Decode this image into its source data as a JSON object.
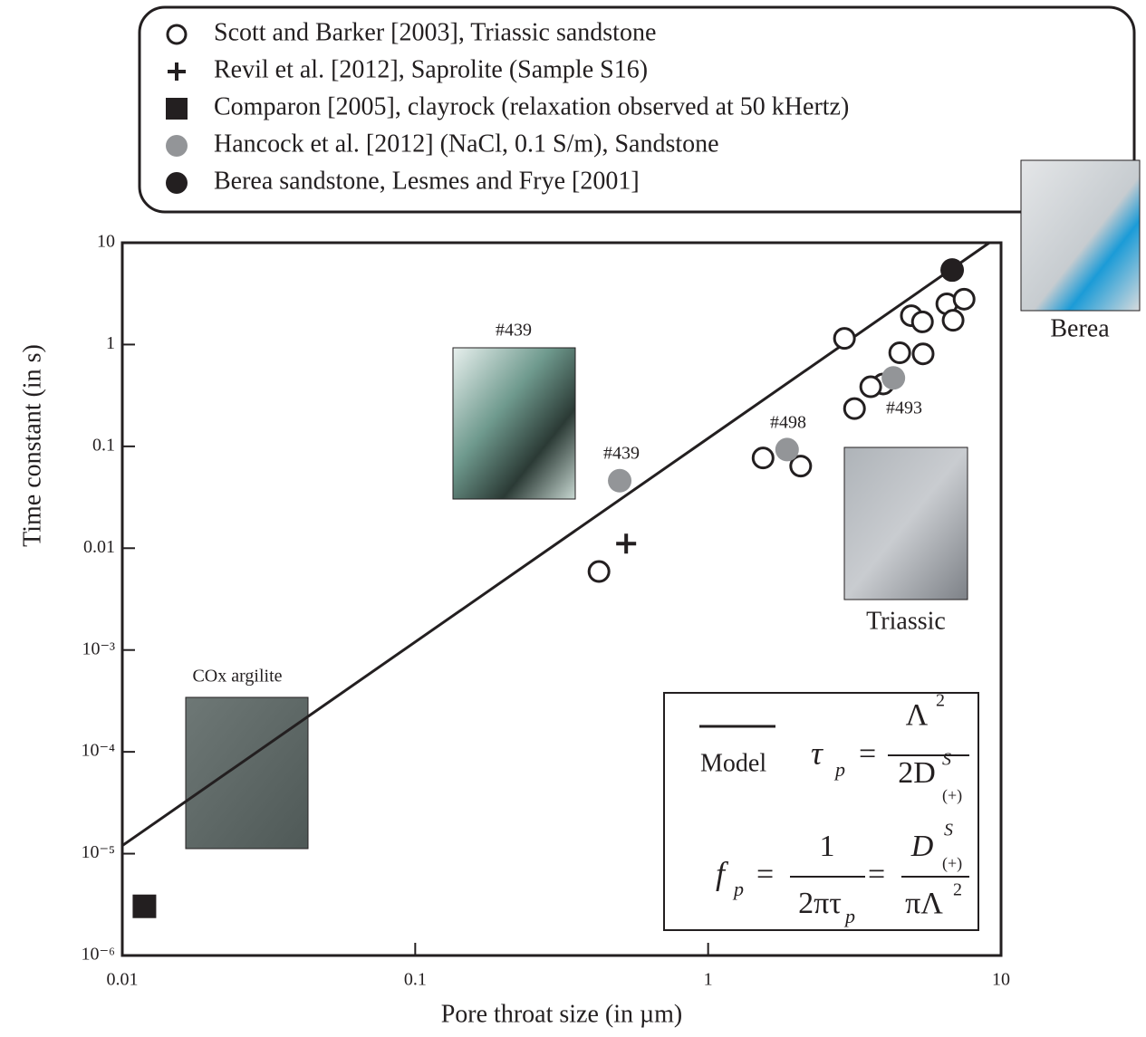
{
  "chart_data": {
    "type": "scatter",
    "x_label": "Pore throat size (in µm)",
    "y_label": "Time constant (in s)",
    "log_x": true,
    "log_y": true,
    "xlim": [
      0.01,
      10
    ],
    "ylim": [
      1e-06,
      10
    ],
    "xticks": [
      0.01,
      0.1,
      1,
      10
    ],
    "yticks": [
      {
        "value": 1e-06,
        "label": "10⁻⁶"
      },
      {
        "value": 1e-05,
        "label": "10⁻⁵"
      },
      {
        "value": 0.0001,
        "label": "10⁻⁴"
      },
      {
        "value": 0.001,
        "label": "10⁻³"
      },
      0.01,
      0.1,
      1,
      10
    ],
    "series": [
      {
        "name": "Scott and Barker [2003], Triassic sandstone",
        "marker": "open-circle",
        "color": "#231f20",
        "x": [
          2.92,
          4.94,
          5.39,
          6.53,
          7.48,
          6.86,
          4.51,
          5.42,
          3.96,
          3.59,
          3.16,
          1.54,
          2.07,
          0.424
        ],
        "values": [
          1.15,
          1.92,
          1.67,
          2.51,
          2.79,
          1.73,
          0.83,
          0.81,
          0.41,
          0.385,
          0.235,
          0.077,
          0.064,
          0.0059
        ]
      },
      {
        "name": "Revil et al. [2012], Saprolite (Sample S16)",
        "marker": "plus",
        "color": "#231f20",
        "x": [
          0.525
        ],
        "values": [
          0.0111
        ]
      },
      {
        "name": "Comparon [2005], clayrock (relaxation observed at 50 kHertz)",
        "marker": "square",
        "color": "#231f20",
        "x": [
          0.0119
        ],
        "values": [
          3.04e-06
        ]
      },
      {
        "name": "Hancock et al. [2012] (NaCl, 0.1 S/m), Sandstone",
        "marker": "circle",
        "color": "#939598",
        "x": [
          0.499,
          1.86,
          4.29
        ],
        "values": [
          0.046,
          0.093,
          0.47
        ]
      },
      {
        "name": "Berea sandstone, Lesmes and Frye [2001]",
        "marker": "circle",
        "color": "#231f20",
        "x": [
          6.81
        ],
        "values": [
          5.39
        ]
      }
    ],
    "model": {
      "name": "Model",
      "color": "#231f20",
      "x": [
        0.01,
        9.1
      ],
      "values": [
        1.2e-05,
        9.94
      ]
    },
    "annotations": [
      "#439",
      "#439",
      "#498",
      "#493",
      "COx argilite",
      "Triassic",
      "Berea"
    ],
    "formula_1": [
      "τ",
      "p",
      "=",
      "Λ",
      "2",
      "2D",
      "S",
      "(+)"
    ],
    "formula_2": [
      "f",
      "p",
      "=",
      "1",
      "2πτ",
      "p",
      "=",
      "D",
      "S",
      "(+)",
      "πΛ",
      "2"
    ]
  }
}
